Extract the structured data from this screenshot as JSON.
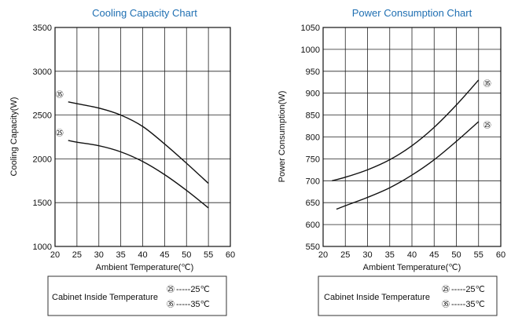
{
  "chart_data": [
    {
      "type": "line",
      "title": "Cooling Capacity Chart",
      "xlabel": "Ambient Temperature(℃)",
      "ylabel": "Cooling  Capacity(W)",
      "xlim": [
        20,
        60
      ],
      "ylim": [
        1000,
        3500
      ],
      "grid": true,
      "x_ticks": [
        "20",
        "25",
        "30",
        "35",
        "40",
        "45",
        "50",
        "55",
        "60"
      ],
      "y_ticks": [
        "1000",
        "1500",
        "2000",
        "2500",
        "3000",
        "3500"
      ],
      "series": [
        {
          "marker": "㉟",
          "x": [
            23,
            25,
            30,
            35,
            40,
            45,
            50,
            55
          ],
          "y": [
            2650,
            2630,
            2580,
            2500,
            2370,
            2170,
            1950,
            1720
          ]
        },
        {
          "marker": "㉕",
          "x": [
            23,
            25,
            30,
            35,
            40,
            45,
            50,
            55
          ],
          "y": [
            2210,
            2190,
            2150,
            2080,
            1970,
            1820,
            1640,
            1440
          ]
        }
      ],
      "legend_title": "Cabinet Inside Temperature",
      "legend_items": [
        {
          "marker": "㉕",
          "text": "-----25℃"
        },
        {
          "marker": "㉟",
          "text": "-----35℃"
        }
      ]
    },
    {
      "type": "line",
      "title": "Power Consumption Chart",
      "xlabel": "Ambient Temperature(℃)",
      "ylabel": "Power Consumption(W)",
      "xlim": [
        20,
        60
      ],
      "ylim": [
        550,
        1050
      ],
      "grid": true,
      "x_ticks": [
        "20",
        "25",
        "30",
        "35",
        "40",
        "45",
        "50",
        "55",
        "60"
      ],
      "y_ticks": [
        "550",
        "600",
        "650",
        "700",
        "750",
        "800",
        "850",
        "900",
        "950",
        "1000",
        "1050"
      ],
      "series": [
        {
          "marker": "㉟",
          "x": [
            22,
            25,
            30,
            35,
            40,
            45,
            50,
            55
          ],
          "y": [
            700,
            708,
            725,
            748,
            780,
            822,
            873,
            930
          ]
        },
        {
          "marker": "㉕",
          "x": [
            23,
            25,
            30,
            35,
            40,
            45,
            50,
            55
          ],
          "y": [
            635,
            643,
            662,
            684,
            713,
            748,
            790,
            835
          ]
        }
      ],
      "legend_title": "Cabinet Inside Temperature",
      "legend_items": [
        {
          "marker": "㉕",
          "text": "-----25℃"
        },
        {
          "marker": "㉟",
          "text": "-----35℃"
        }
      ]
    }
  ]
}
